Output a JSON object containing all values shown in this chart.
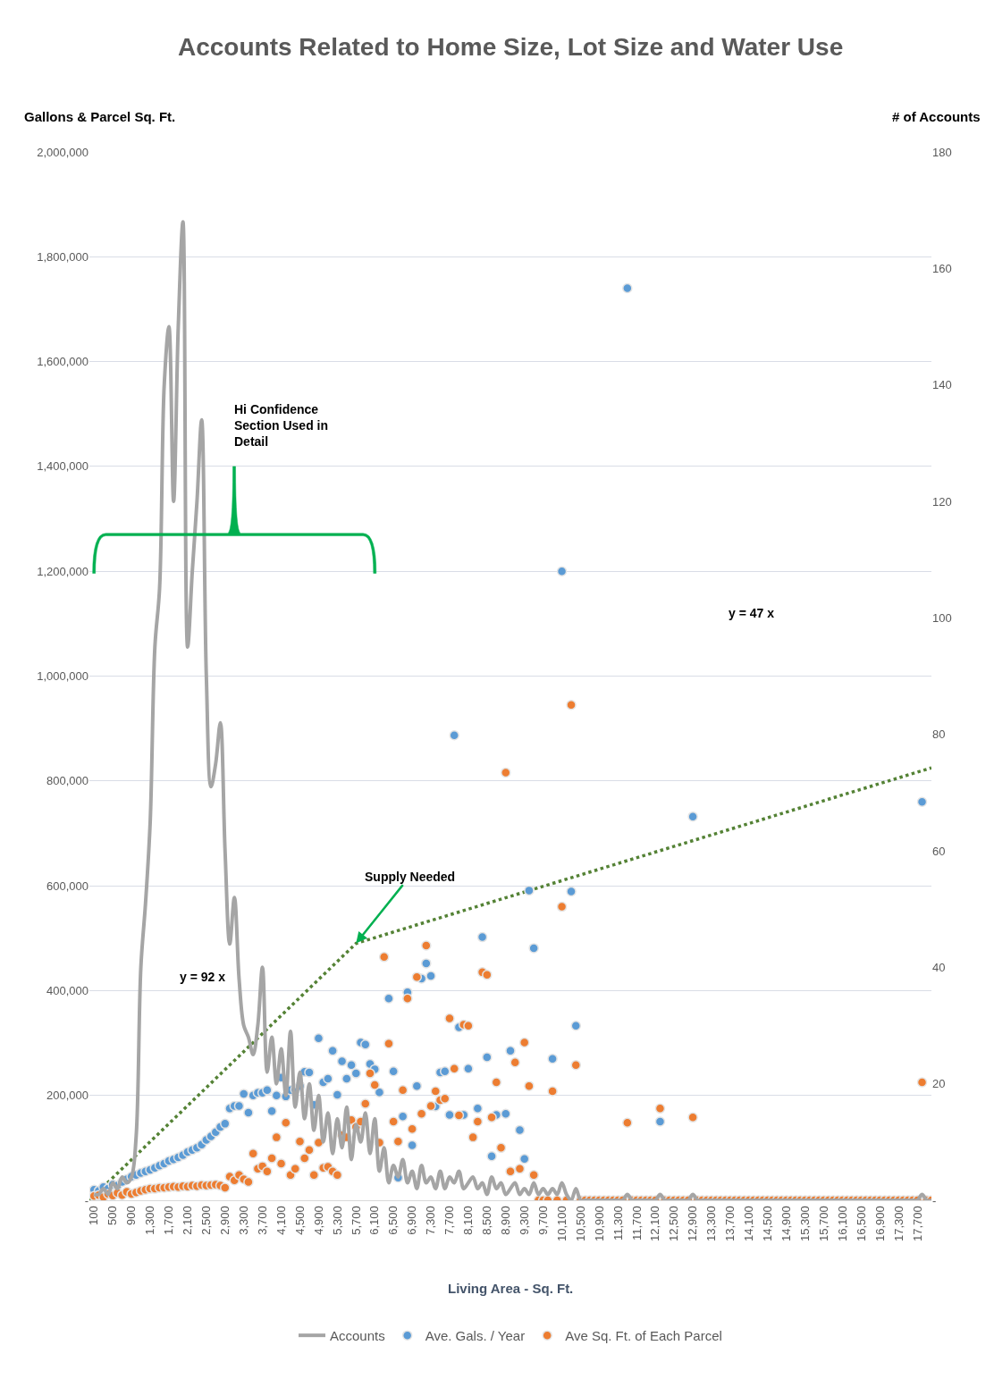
{
  "chart_data": {
    "type": "scatter",
    "title": "Accounts Related to Home Size, Lot Size and Water Use",
    "xlabel": "Living Area - Sq. Ft.",
    "ylabel": "Gallons & Parcel Sq. Ft.",
    "y2label": "# of Accounts",
    "x": [
      100,
      200,
      300,
      400,
      500,
      600,
      700,
      800,
      900,
      1000,
      1100,
      1200,
      1300,
      1400,
      1500,
      1600,
      1700,
      1800,
      1900,
      2000,
      2100,
      2200,
      2300,
      2400,
      2500,
      2600,
      2700,
      2800,
      2900,
      3000,
      3100,
      3200,
      3300,
      3400,
      3500,
      3600,
      3700,
      3800,
      3900,
      4000,
      4100,
      4200,
      4300,
      4400,
      4500,
      4600,
      4700,
      4800,
      4900,
      5000,
      5100,
      5200,
      5300,
      5400,
      5500,
      5600,
      5700,
      5800,
      5900,
      6000,
      6100,
      6200,
      6300,
      6400,
      6500,
      6600,
      6700,
      6800,
      6900,
      7000,
      7100,
      7200,
      7300,
      7400,
      7500,
      7600,
      7700,
      7800,
      7900,
      8000,
      8100,
      8200,
      8300,
      8400,
      8500,
      8600,
      8700,
      8800,
      8900,
      9000,
      9100,
      9200,
      9300,
      9400,
      9500,
      9600,
      9700,
      9800,
      9900,
      10000,
      10100,
      10200,
      10300,
      10400,
      10500,
      10600,
      10700,
      10800,
      10900,
      11000,
      11100,
      11200,
      11300,
      11400,
      11500,
      11600,
      11700,
      11800,
      11900,
      12000,
      12100,
      12200,
      12300,
      12400,
      12500,
      12600,
      12700,
      12800,
      12900,
      13000,
      13100,
      13200,
      13300,
      13400,
      13500,
      13600,
      13700,
      13800,
      13900,
      14000,
      14100,
      14200,
      14300,
      14400,
      14500,
      14600,
      14700,
      14800,
      14900,
      15000,
      15100,
      15200,
      15300,
      15400,
      15500,
      15600,
      15700,
      15800,
      15900,
      16000,
      16100,
      16200,
      16300,
      16400,
      16500,
      16600,
      16700,
      16800,
      16900,
      17000,
      17100,
      17200,
      17300,
      17400,
      17500,
      17600,
      17700,
      17800,
      17900,
      18000
    ],
    "series": [
      {
        "name": "Ave. Gals. / Year",
        "marker": "circle",
        "color": "#5b9bd5",
        "values": [
          20000,
          18000,
          25000,
          22000,
          30000,
          28000,
          35000,
          40000,
          45000,
          48000,
          52000,
          55000,
          58000,
          62000,
          66000,
          70000,
          75000,
          78000,
          82000,
          86000,
          92000,
          96000,
          100000,
          106000,
          115000,
          122000,
          130000,
          140000,
          146000,
          175000,
          180000,
          180000,
          203000,
          167000,
          200000,
          205000,
          205000,
          210000,
          170000,
          200000,
          234000,
          198000,
          210000,
          211000,
          218000,
          245000,
          244000,
          182000,
          309000,
          225000,
          232000,
          285000,
          201000,
          265000,
          232000,
          258000,
          242000,
          301000,
          297000,
          260000,
          250000,
          206000,
          null,
          385000,
          246000,
          43000,
          160000,
          397000,
          105000,
          218000,
          423000,
          452000,
          428000,
          179000,
          244000,
          246000,
          163000,
          887000,
          330000,
          163000,
          251000,
          null,
          175000,
          502000,
          273000,
          84000,
          163000,
          null,
          165000,
          285000,
          null,
          134000,
          79000,
          591000,
          481000,
          null,
          null,
          null,
          270000,
          null,
          1200000,
          null,
          589000,
          333000,
          null,
          null,
          null,
          null,
          null,
          null,
          null,
          null,
          null,
          null,
          1740000,
          null,
          null,
          null,
          null,
          null,
          null,
          150000,
          null,
          null,
          null,
          null,
          null,
          null,
          732000,
          null,
          null,
          null,
          null,
          null,
          null,
          null,
          null,
          null,
          null,
          null,
          null,
          null,
          null,
          null,
          null,
          null,
          null,
          null,
          null,
          null,
          null,
          null,
          null,
          null,
          null,
          null,
          null,
          null,
          null,
          null,
          null,
          null,
          null,
          null,
          null,
          null,
          null,
          null,
          null,
          null,
          null,
          null,
          null,
          null,
          null,
          null,
          null,
          760000,
          null,
          null
        ]
      },
      {
        "name": "Ave Sq. Ft. of Each Parcel",
        "marker": "circle",
        "color": "#ed7d31",
        "values": [
          8000,
          10000,
          6000,
          12000,
          9000,
          14000,
          10000,
          16000,
          12000,
          15000,
          18000,
          20000,
          22000,
          22000,
          24000,
          24000,
          25000,
          26000,
          25000,
          27000,
          26000,
          28000,
          27000,
          29000,
          28000,
          29000,
          30000,
          28000,
          24000,
          45000,
          38000,
          48000,
          40000,
          35000,
          89000,
          60000,
          65000,
          55000,
          80000,
          120000,
          70000,
          148000,
          48000,
          60000,
          112000,
          80000,
          96000,
          48000,
          110000,
          62000,
          64000,
          55000,
          48000,
          124000,
          120000,
          153000,
          140000,
          150000,
          184000,
          242000,
          220000,
          110000,
          464000,
          299000,
          150000,
          112000,
          210000,
          385000,
          136000,
          426000,
          165000,
          486000,
          180000,
          208000,
          191000,
          194000,
          347000,
          251000,
          162000,
          335000,
          333000,
          120000,
          150000,
          435000,
          430000,
          158000,
          225000,
          100000,
          816000,
          55000,
          263000,
          60000,
          301000,
          218000,
          48000,
          0,
          0,
          0,
          208000,
          0,
          560000,
          0,
          945000,
          258000,
          0,
          0,
          0,
          0,
          0,
          0,
          0,
          0,
          0,
          0,
          148000,
          0,
          0,
          0,
          0,
          0,
          0,
          175000,
          0,
          0,
          0,
          0,
          0,
          0,
          158000,
          0,
          0,
          0,
          0,
          0,
          0,
          0,
          0,
          0,
          0,
          0,
          0,
          0,
          0,
          0,
          0,
          0,
          0,
          0,
          0,
          0,
          0,
          0,
          0,
          0,
          0,
          0,
          0,
          0,
          0,
          0,
          0,
          0,
          0,
          0,
          0,
          0,
          0,
          0,
          0,
          0,
          0,
          0,
          0,
          0,
          0,
          0,
          0,
          225000,
          0,
          0
        ]
      },
      {
        "name": "Accounts",
        "type": "line",
        "axis": "y2",
        "marker": "none",
        "line_style": "solid",
        "color": "#a5a5a5",
        "values": [
          1,
          1,
          2,
          1,
          3,
          2,
          4,
          3,
          4,
          11,
          40,
          51,
          65,
          95,
          105,
          140,
          150,
          120,
          150,
          168,
          95,
          108,
          120,
          134,
          90,
          71,
          75,
          82,
          60,
          44,
          52,
          38,
          30,
          28,
          25,
          30,
          40,
          22,
          28,
          20,
          26,
          18,
          29,
          16,
          22,
          14,
          20,
          12,
          18,
          10,
          15,
          8,
          14,
          9,
          16,
          7,
          13,
          10,
          15,
          8,
          14,
          5,
          9,
          3,
          6,
          4,
          7,
          3,
          5,
          2,
          6,
          3,
          4,
          2,
          5,
          2,
          4,
          3,
          5,
          2,
          3,
          4,
          2,
          3,
          1,
          4,
          2,
          3,
          1,
          2,
          3,
          1,
          2,
          1,
          3,
          1,
          2,
          1,
          2,
          1,
          3,
          1,
          0,
          2,
          0,
          0,
          0,
          0,
          0,
          0,
          0,
          0,
          0,
          0,
          1,
          0,
          0,
          0,
          0,
          0,
          0,
          1,
          0,
          0,
          0,
          0,
          0,
          0,
          1,
          0,
          0,
          0,
          0,
          0,
          0,
          0,
          0,
          0,
          0,
          0,
          0,
          0,
          0,
          0,
          0,
          0,
          0,
          0,
          0,
          0,
          0,
          0,
          0,
          0,
          0,
          0,
          0,
          0,
          0,
          0,
          0,
          0,
          0,
          0,
          0,
          0,
          0,
          0,
          0,
          0,
          0,
          0,
          0,
          0,
          0,
          0,
          0,
          1,
          0,
          0
        ]
      },
      {
        "type": "line",
        "marker": "none",
        "line_style": "dotted",
        "color": "#548235",
        "x": [
          0,
          5700,
          18000
        ],
        "values": [
          0,
          490000,
          825000
        ]
      }
    ],
    "xlim": [
      0,
      18000
    ],
    "xticks": [
      100,
      500,
      900,
      {
        "value": 1300,
        "label": "1,300"
      },
      {
        "value": 1700,
        "label": "1,700"
      },
      {
        "value": 2100,
        "label": "2,100"
      },
      {
        "value": 2500,
        "label": "2,500"
      },
      {
        "value": 2900,
        "label": "2,900"
      },
      {
        "value": 3300,
        "label": "3,300"
      },
      {
        "value": 3700,
        "label": "3,700"
      },
      {
        "value": 4100,
        "label": "4,100"
      },
      {
        "value": 4500,
        "label": "4,500"
      },
      {
        "value": 4900,
        "label": "4,900"
      },
      {
        "value": 5300,
        "label": "5,300"
      },
      {
        "value": 5700,
        "label": "5,700"
      },
      {
        "value": 6100,
        "label": "6,100"
      },
      {
        "value": 6500,
        "label": "6,500"
      },
      {
        "value": 6900,
        "label": "6,900"
      },
      {
        "value": 7300,
        "label": "7,300"
      },
      {
        "value": 7700,
        "label": "7,700"
      },
      {
        "value": 8100,
        "label": "8,100"
      },
      {
        "value": 8500,
        "label": "8,500"
      },
      {
        "value": 8900,
        "label": "8,900"
      },
      {
        "value": 9300,
        "label": "9,300"
      },
      {
        "value": 9700,
        "label": "9,700"
      },
      {
        "value": 10100,
        "label": "10,100"
      },
      {
        "value": 10500,
        "label": "10,500"
      },
      {
        "value": 10900,
        "label": "10,900"
      },
      {
        "value": 11300,
        "label": "11,300"
      },
      {
        "value": 11700,
        "label": "11,700"
      },
      {
        "value": 12100,
        "label": "12,100"
      },
      {
        "value": 12500,
        "label": "12,500"
      },
      {
        "value": 12900,
        "label": "12,900"
      },
      {
        "value": 13300,
        "label": "13,300"
      },
      {
        "value": 13700,
        "label": "13,700"
      },
      {
        "value": 14100,
        "label": "14,100"
      },
      {
        "value": 14500,
        "label": "14,500"
      },
      {
        "value": 14900,
        "label": "14,900"
      },
      {
        "value": 15300,
        "label": "15,300"
      },
      {
        "value": 15700,
        "label": "15,700"
      },
      {
        "value": 16100,
        "label": "16,100"
      },
      {
        "value": 16500,
        "label": "16,500"
      },
      {
        "value": 16900,
        "label": "16,900"
      },
      {
        "value": 17300,
        "label": "17,300"
      },
      {
        "value": 17700,
        "label": "17,700"
      }
    ],
    "ylim": [
      0,
      2000000
    ],
    "yticks": [
      {
        "value": 0,
        "label": "-"
      },
      {
        "value": 200000,
        "label": "200,000"
      },
      {
        "value": 400000,
        "label": "400,000"
      },
      {
        "value": 600000,
        "label": "600,000"
      },
      {
        "value": 800000,
        "label": "800,000"
      },
      {
        "value": 1000000,
        "label": "1,000,000"
      },
      {
        "value": 1200000,
        "label": "1,200,000"
      },
      {
        "value": 1400000,
        "label": "1,400,000"
      },
      {
        "value": 1600000,
        "label": "1,600,000"
      },
      {
        "value": 1800000,
        "label": "1,800,000"
      },
      {
        "value": 2000000,
        "label": "2,000,000"
      }
    ],
    "y2lim": [
      0,
      180
    ],
    "y2ticks": [
      {
        "value": 0,
        "label": "-"
      },
      20,
      40,
      60,
      80,
      100,
      120,
      140,
      160,
      180
    ],
    "grid": "y",
    "legend": "bottom",
    "annotations": [
      "y = 92 x",
      "y = 47 x",
      {
        "text": "Supply Needed",
        "x": 5700,
        "y": 490000
      },
      "Hi Confidence Section Used in Detail"
    ]
  }
}
